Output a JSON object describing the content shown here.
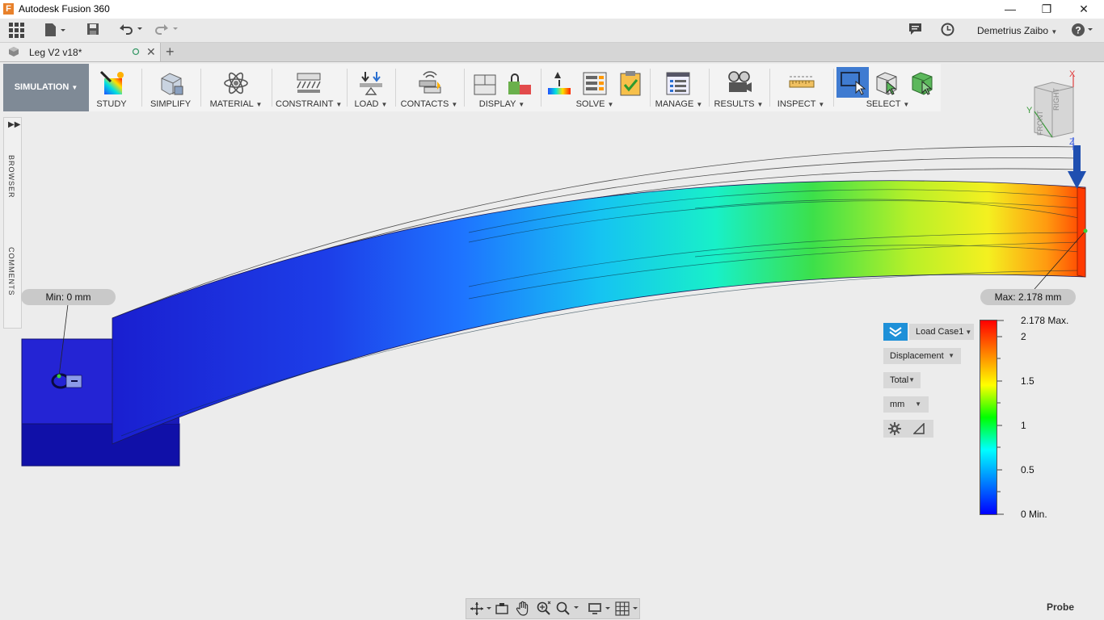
{
  "window": {
    "title": "Autodesk Fusion 360",
    "app_logo_letter": "F"
  },
  "quick_access": {
    "user_name": "Demetrius Zaibo"
  },
  "document_tab": {
    "name": "Leg V2 v18*"
  },
  "toolbar": {
    "workspace_label": "SIMULATION",
    "groups": [
      {
        "label": "STUDY"
      },
      {
        "label": "SIMPLIFY"
      },
      {
        "label": "MATERIAL"
      },
      {
        "label": "CONSTRAINT"
      },
      {
        "label": "LOAD"
      },
      {
        "label": "CONTACTS"
      },
      {
        "label": "DISPLAY"
      },
      {
        "label": "SOLVE"
      },
      {
        "label": "MANAGE"
      },
      {
        "label": "RESULTS"
      },
      {
        "label": "INSPECT"
      },
      {
        "label": "SELECT"
      }
    ]
  },
  "browser_strip": {
    "browser_label": "BROWSER",
    "comments_label": "COMMENTS"
  },
  "viewcube": {
    "right_label": "RIGHT",
    "front_label": "FRONT",
    "axis_x": "X",
    "axis_y": "Y",
    "axis_z": "Z"
  },
  "results": {
    "min_callout": "Min: 0 mm",
    "max_callout": "Max: 2.178 mm",
    "load_case": "Load Case1",
    "result_type": "Displacement",
    "component": "Total",
    "units": "mm",
    "legend": {
      "max_label": "2.178 Max.",
      "min_label": "0 Min.",
      "ticks": [
        "2",
        "1.5",
        "1",
        "0.5"
      ],
      "colors": [
        "#ff0000",
        "#ff8000",
        "#ffff00",
        "#00ff00",
        "#00ffff",
        "#0080ff",
        "#0000ff"
      ]
    }
  },
  "status": {
    "probe_label": "Probe"
  }
}
